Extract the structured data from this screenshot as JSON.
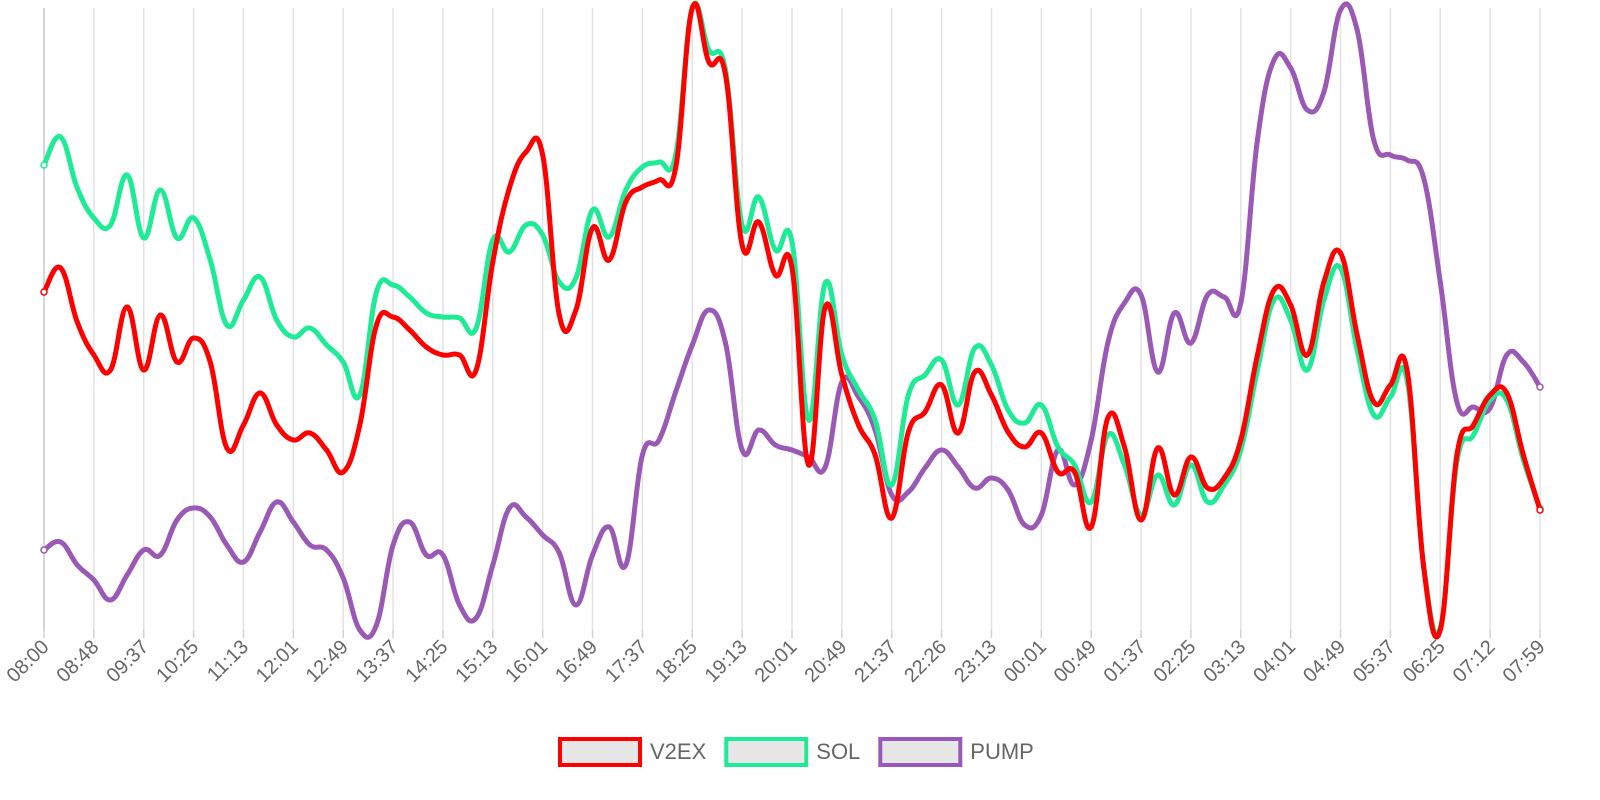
{
  "chart_data": {
    "type": "line",
    "categories": [
      "08:00",
      null,
      null,
      "08:48",
      null,
      null,
      "09:37",
      null,
      null,
      "10:25",
      null,
      null,
      "11:13",
      null,
      null,
      "12:01",
      null,
      null,
      "12:49",
      null,
      null,
      "13:37",
      null,
      null,
      "14:25",
      null,
      null,
      "15:13",
      null,
      null,
      "16:01",
      null,
      null,
      "16:49",
      null,
      null,
      "17:37",
      null,
      null,
      "18:25",
      null,
      null,
      "19:13",
      null,
      null,
      "20:01",
      null,
      null,
      "20:49",
      null,
      null,
      "21:37",
      null,
      null,
      "22:26",
      null,
      null,
      "23:13",
      null,
      null,
      "00:01",
      null,
      null,
      "00:49",
      null,
      null,
      "01:37",
      null,
      null,
      "02:25",
      null,
      null,
      "03:13",
      null,
      null,
      "04:01",
      null,
      null,
      "04:49",
      null,
      null,
      "05:37",
      null,
      null,
      "06:25",
      null,
      null,
      "07:12",
      null,
      null,
      "07:59"
    ],
    "series": [
      {
        "name": "V2EX",
        "color": "#ff0000",
        "values": [
          338,
          362,
          308,
          275,
          260,
          323,
          260,
          315,
          268,
          292,
          268,
          182,
          205,
          237,
          205,
          190,
          197,
          180,
          158,
          205,
          305,
          313,
          300,
          283,
          275,
          275,
          260,
          368,
          442,
          478,
          475,
          315,
          320,
          402,
          370,
          428,
          443,
          450,
          462,
          622,
          568,
          555,
          385,
          408,
          355,
          362,
          165,
          323,
          255,
          205,
          175,
          112,
          198,
          218,
          245,
          197,
          258,
          235,
          198,
          183,
          197,
          158,
          158,
          103,
          212,
          183,
          110,
          182,
          135,
          173,
          142,
          152,
          190,
          275,
          340,
          325,
          275,
          348,
          377,
          295,
          228,
          245,
          260,
          63,
          0,
          175,
          205,
          235,
          237,
          175,
          120
        ]
      },
      {
        "name": "SOL",
        "color": "#1eeb96",
        "values": [
          465,
          493,
          442,
          412,
          405,
          455,
          392,
          440,
          392,
          412,
          370,
          305,
          330,
          353,
          310,
          293,
          302,
          285,
          268,
          235,
          338,
          345,
          333,
          317,
          313,
          312,
          302,
          390,
          378,
          405,
          395,
          348,
          352,
          420,
          393,
          440,
          463,
          468,
          475,
          622,
          580,
          560,
          405,
          433,
          380,
          388,
          210,
          347,
          275,
          240,
          210,
          145,
          235,
          255,
          270,
          225,
          282,
          265,
          220,
          207,
          225,
          183,
          165,
          128,
          195,
          165,
          115,
          155,
          125,
          165,
          128,
          145,
          180,
          260,
          330,
          310,
          260,
          330,
          362,
          280,
          215,
          233,
          250,
          65,
          2,
          168,
          195,
          230,
          230,
          170,
          122
        ]
      },
      {
        "name": "PUMP",
        "color": "#9b59b6",
        "values": [
          80,
          88,
          65,
          50,
          30,
          55,
          80,
          75,
          110,
          122,
          113,
          85,
          68,
          98,
          128,
          108,
          85,
          80,
          52,
          0,
          5,
          85,
          108,
          75,
          75,
          25,
          12,
          65,
          122,
          113,
          95,
          77,
          25,
          75,
          103,
          65,
          175,
          190,
          238,
          285,
          320,
          287,
          180,
          200,
          185,
          180,
          173,
          163,
          248,
          233,
          200,
          135,
          138,
          162,
          180,
          163,
          142,
          152,
          140,
          105,
          115,
          180,
          145,
          190,
          287,
          327,
          335,
          258,
          317,
          287,
          335,
          333,
          327,
          490,
          570,
          562,
          520,
          538,
          620,
          600,
          490,
          475,
          470,
          452,
          348,
          228,
          223,
          222,
          275,
          268,
          243
        ]
      }
    ],
    "ylim": [
      0,
      622
    ],
    "grid": true,
    "legend": "bottom"
  }
}
